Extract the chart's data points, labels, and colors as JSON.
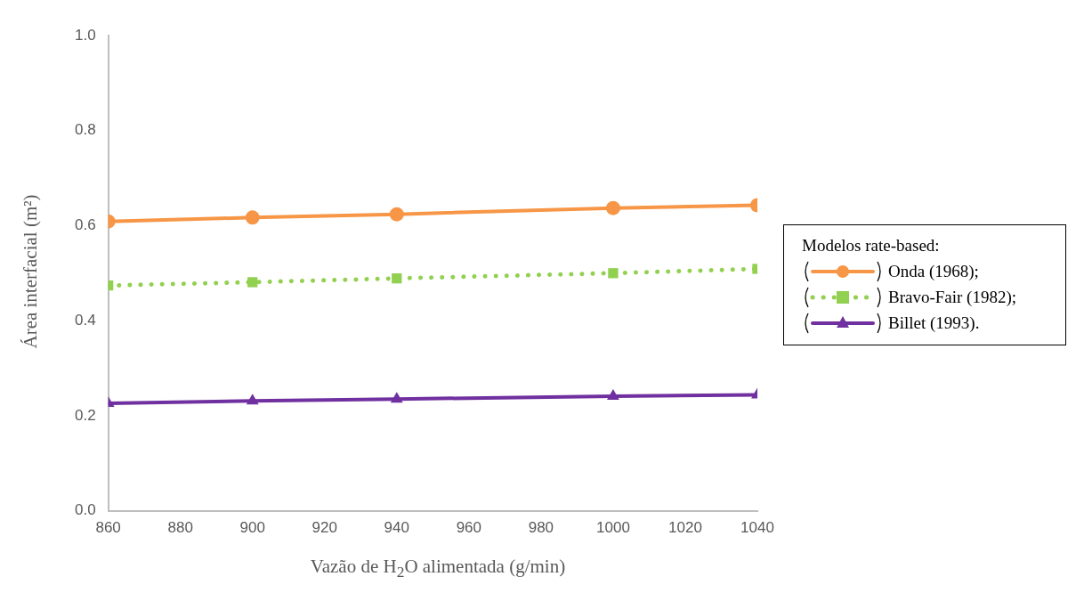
{
  "chart_data": {
    "type": "line",
    "xlabel": "Vazão de H$_{2}$O alimentada (g/min)",
    "ylabel": "Área interfacial (m²)",
    "legend_title": "Modelos rate-based:",
    "legend": "right",
    "grid": false,
    "x": [
      860,
      900,
      940,
      1000,
      1040
    ],
    "xlim": [
      860,
      1040
    ],
    "xticks": [
      860,
      880,
      900,
      920,
      940,
      960,
      980,
      1000,
      1020,
      1040
    ],
    "ylim": [
      0,
      1
    ],
    "yticks": [
      {
        "value": 0,
        "label": "0.0"
      },
      0.2,
      0.4,
      0.6,
      0.8,
      {
        "value": 1,
        "label": "1.0"
      }
    ],
    "series": [
      {
        "name": "Onda (1968);",
        "color": "#f79646",
        "marker": "circle",
        "line_style": "solid",
        "values": [
          0.609,
          0.617,
          0.624,
          0.637,
          0.643
        ]
      },
      {
        "name": "Bravo-Fair (1982);",
        "color": "#92d050",
        "marker": "square",
        "line_style": "dotted",
        "values": [
          0.474,
          0.481,
          0.489,
          0.5,
          0.509
        ]
      },
      {
        "name": "Billet (1993).",
        "color": "#7030a0",
        "marker": "triangle",
        "line_style": "solid",
        "values": [
          0.226,
          0.231,
          0.235,
          0.241,
          0.244
        ]
      }
    ]
  }
}
